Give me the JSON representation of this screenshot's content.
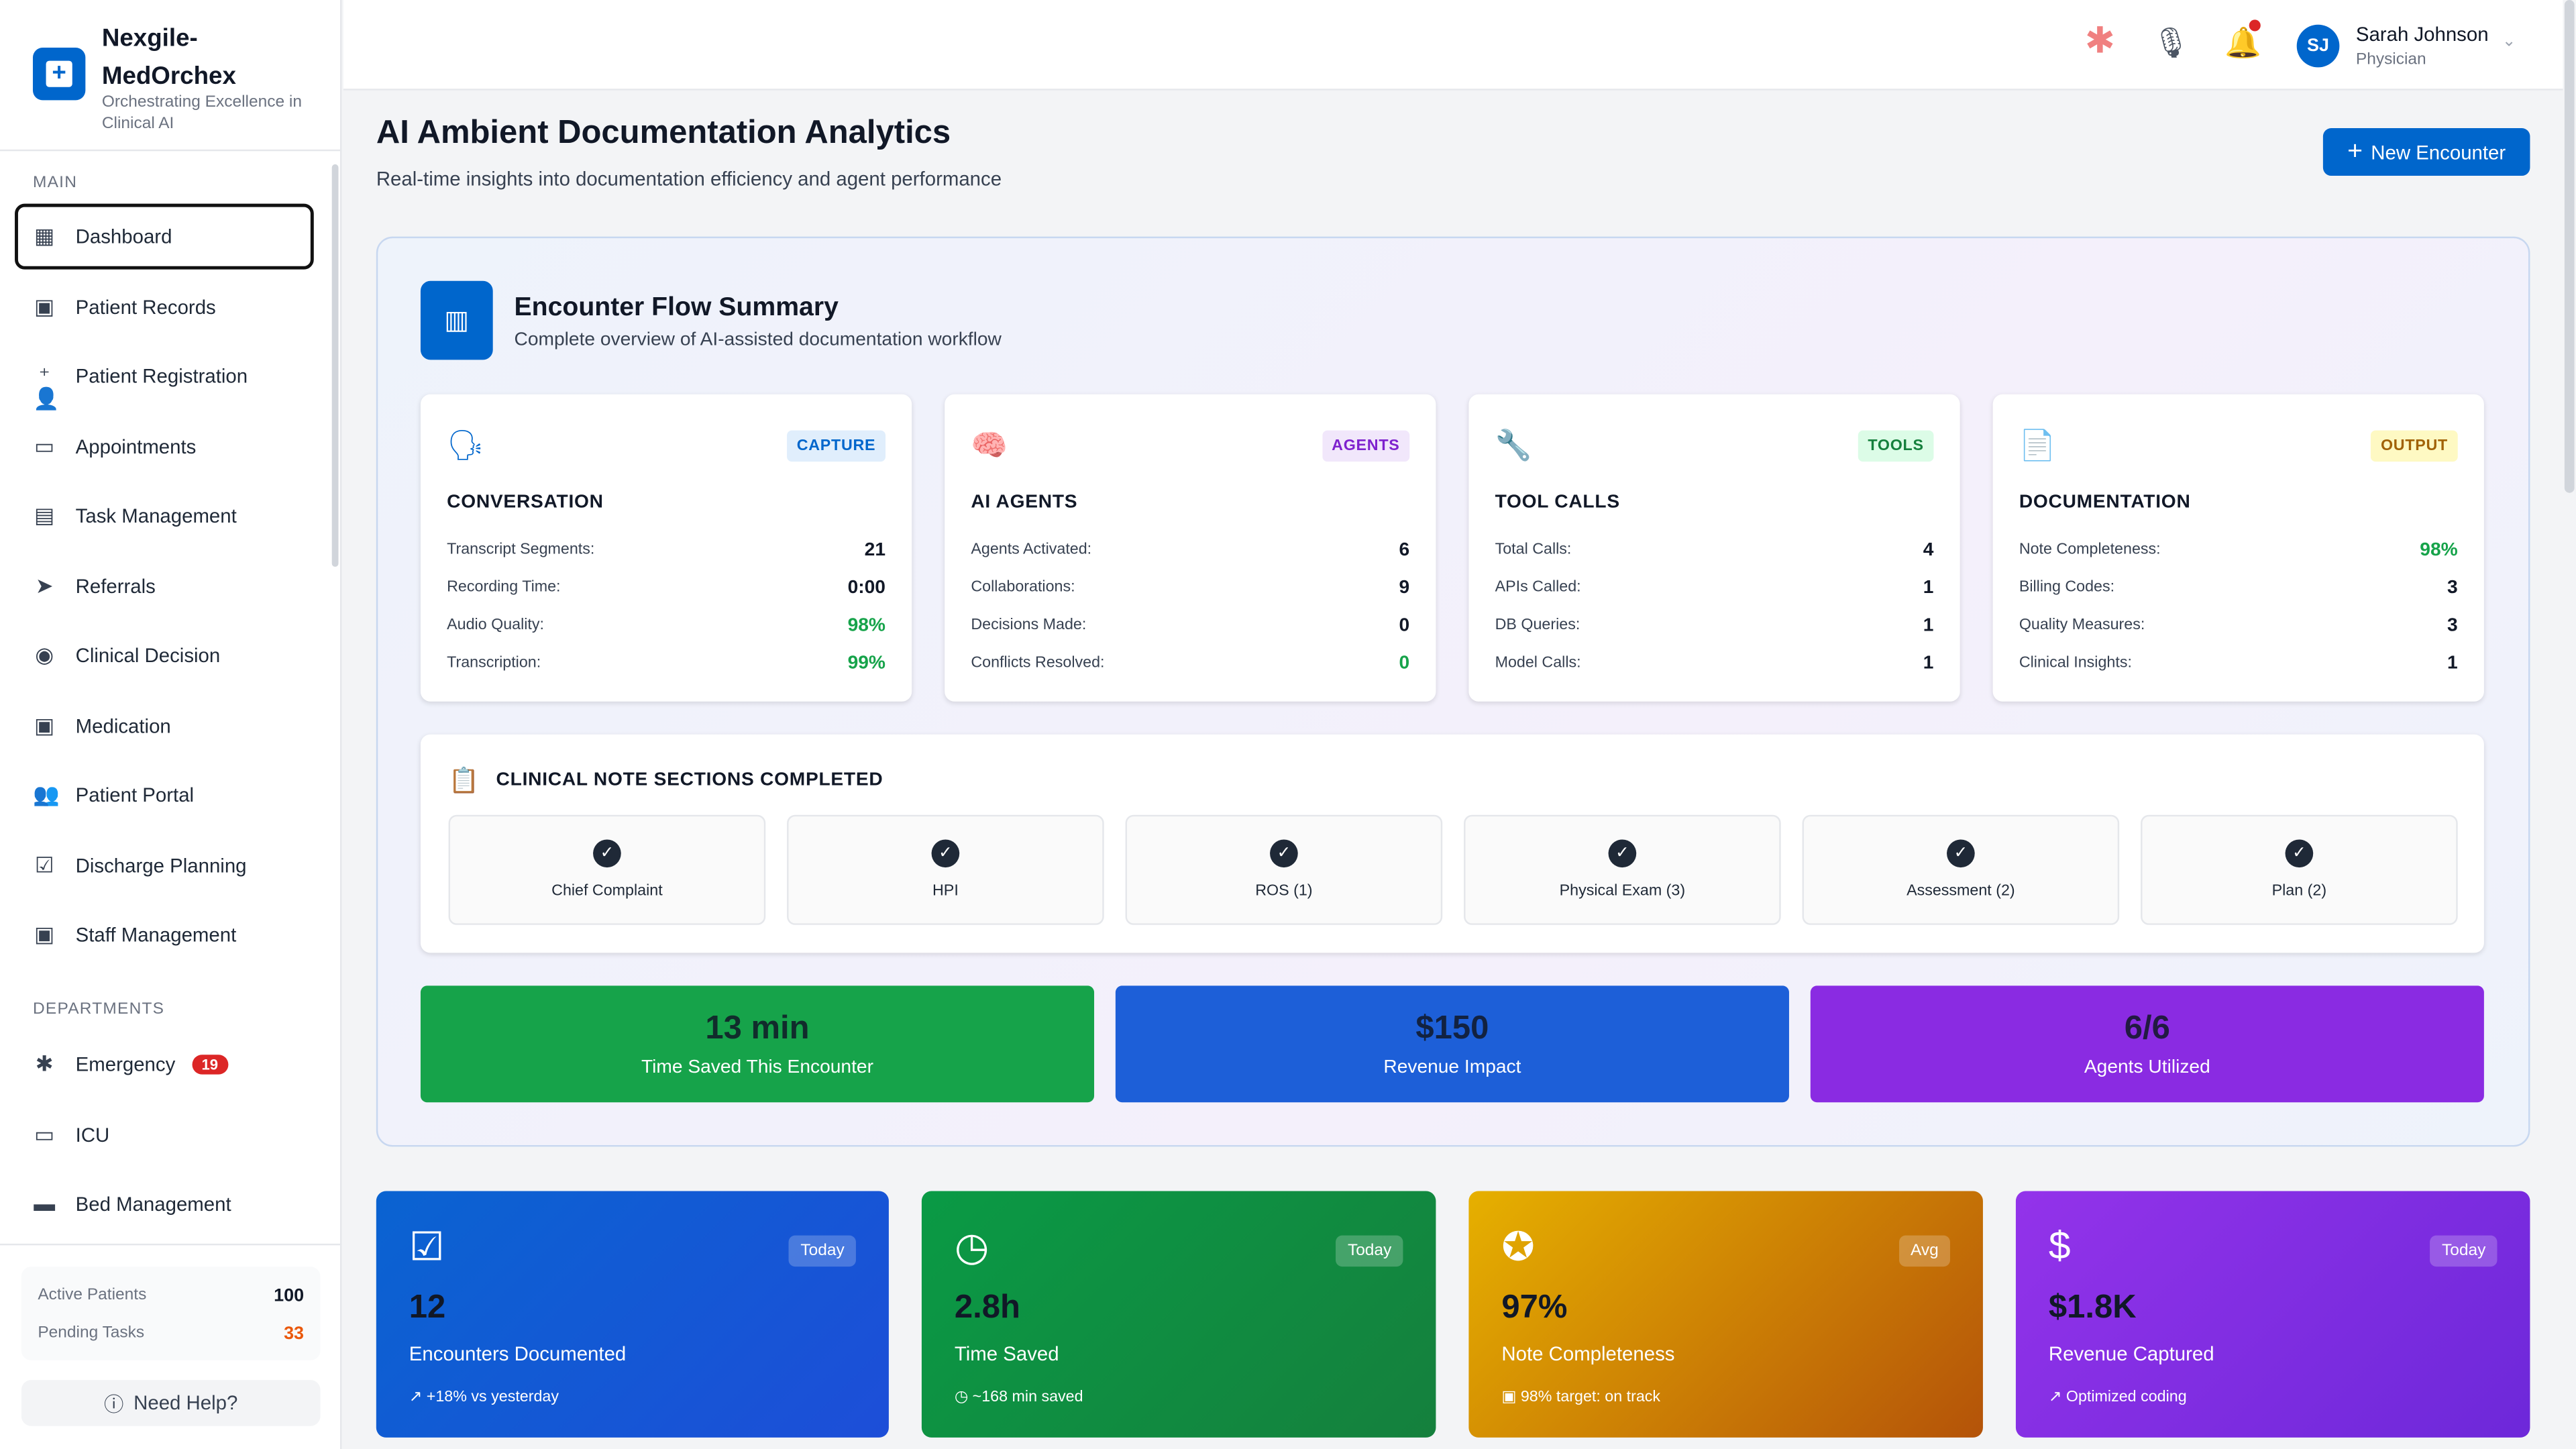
{
  "brand": {
    "name_line1": "Nexgile-",
    "name_line2": "MedOrchex",
    "tagline": "Orchestrating Excellence in Clinical AI"
  },
  "sidebar": {
    "main_label": "MAIN",
    "items": [
      {
        "label": "Dashboard",
        "icon": "dashboard-icon",
        "active": true
      },
      {
        "label": "Patient Records",
        "icon": "patient-records-icon"
      },
      {
        "label": "Patient Registration",
        "icon": "person-add-icon"
      },
      {
        "label": "Appointments",
        "icon": "calendar-icon"
      },
      {
        "label": "Task Management",
        "icon": "clipboard-icon"
      },
      {
        "label": "Referrals",
        "icon": "send-icon"
      },
      {
        "label": "Clinical Decision",
        "icon": "brain-icon"
      },
      {
        "label": "Medication",
        "icon": "medication-icon"
      },
      {
        "label": "Patient Portal",
        "icon": "people-icon"
      },
      {
        "label": "Discharge Planning",
        "icon": "checklist-icon"
      },
      {
        "label": "Staff Management",
        "icon": "badge-icon"
      }
    ],
    "departments_label": "DEPARTMENTS",
    "departments": [
      {
        "label": "Emergency",
        "icon": "asterisk-icon",
        "badge": "19"
      },
      {
        "label": "ICU",
        "icon": "monitor-heart-icon"
      },
      {
        "label": "Bed Management",
        "icon": "bed-icon"
      }
    ],
    "stats": {
      "active_label": "Active Patients",
      "active_value": "100",
      "pending_label": "Pending Tasks",
      "pending_value": "33"
    },
    "help": "Need Help?"
  },
  "topbar": {
    "user_name": "Sarah Johnson",
    "user_role": "Physician",
    "initials": "SJ"
  },
  "header": {
    "title": "AI Ambient Documentation Analytics",
    "subtitle": "Real-time insights into documentation efficiency and agent performance",
    "new_button": "New Encounter"
  },
  "summary": {
    "title": "Encounter Flow Summary",
    "subtitle": "Complete overview of AI-assisted documentation workflow",
    "cards": [
      {
        "tag": "CAPTURE",
        "title": "CONVERSATION",
        "rows": [
          [
            "Transcript Segments:",
            "21"
          ],
          [
            "Recording Time:",
            "0:00"
          ],
          [
            "Audio Quality:",
            "98%"
          ],
          [
            "Transcription:",
            "99%"
          ]
        ]
      },
      {
        "tag": "AGENTS",
        "title": "AI AGENTS",
        "rows": [
          [
            "Agents Activated:",
            "6"
          ],
          [
            "Collaborations:",
            "9"
          ],
          [
            "Decisions Made:",
            "0"
          ],
          [
            "Conflicts Resolved:",
            "0"
          ]
        ]
      },
      {
        "tag": "TOOLS",
        "title": "TOOL CALLS",
        "rows": [
          [
            "Total Calls:",
            "4"
          ],
          [
            "APIs Called:",
            "1"
          ],
          [
            "DB Queries:",
            "1"
          ],
          [
            "Model Calls:",
            "1"
          ]
        ]
      },
      {
        "tag": "OUTPUT",
        "title": "DOCUMENTATION",
        "rows": [
          [
            "Note Completeness:",
            "98%"
          ],
          [
            "Billing Codes:",
            "3"
          ],
          [
            "Quality Measures:",
            "3"
          ],
          [
            "Clinical Insights:",
            "1"
          ]
        ]
      }
    ],
    "sections_title": "CLINICAL NOTE SECTIONS COMPLETED",
    "sections": [
      "Chief Complaint",
      "HPI",
      "ROS (1)",
      "Physical Exam (3)",
      "Assessment (2)",
      "Plan (2)"
    ],
    "bars": [
      {
        "value": "13 min",
        "label": "Time Saved This Encounter",
        "color": "#16a34a"
      },
      {
        "value": "$150",
        "label": "Revenue Impact",
        "color": "#1d5fd8"
      },
      {
        "value": "6/6",
        "label": "Agents Utilized",
        "color": "#8a2be2"
      }
    ]
  },
  "kpis": [
    {
      "badge": "Today",
      "value": "12",
      "label": "Encounters Documented",
      "footer": "+18% vs yesterday",
      "icon": "clipboard-check-icon"
    },
    {
      "badge": "Today",
      "value": "2.8h",
      "label": "Time Saved",
      "footer": "~168 min saved",
      "icon": "clock-icon"
    },
    {
      "badge": "Avg",
      "value": "97%",
      "label": "Note Completeness",
      "footer": "98% target: on track",
      "icon": "verified-icon"
    },
    {
      "badge": "Today",
      "value": "$1.8K",
      "label": "Revenue Captured",
      "footer": "Optimized coding",
      "icon": "dollar-icon"
    }
  ]
}
